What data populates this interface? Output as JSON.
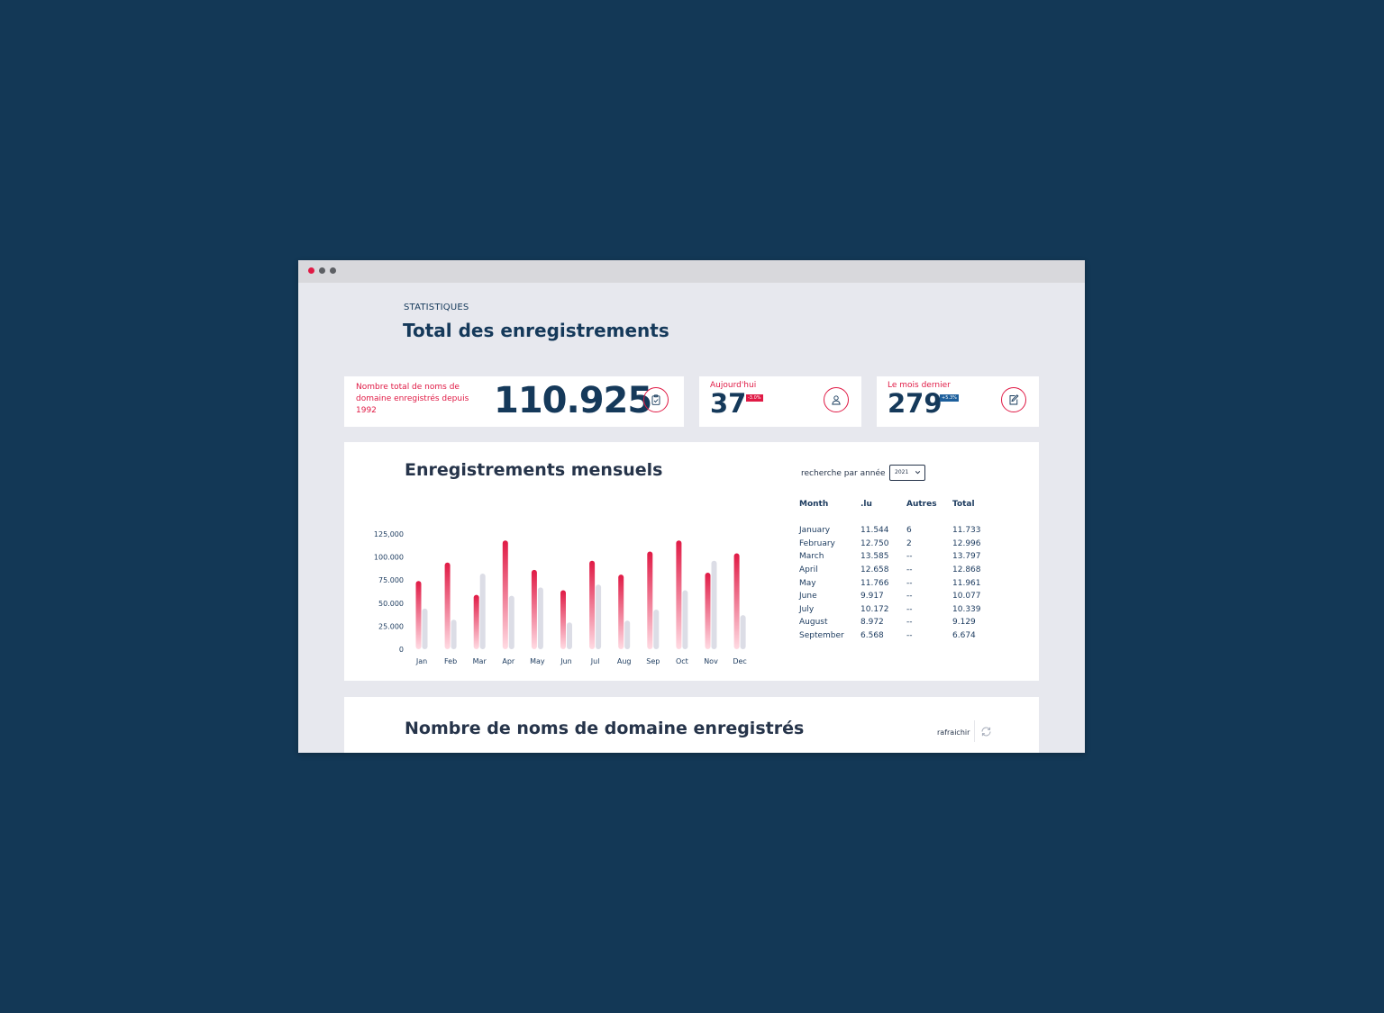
{
  "window": {
    "dots": [
      "red",
      "gray",
      "gray"
    ]
  },
  "header": {
    "eyebrow": "STATISTIQUES",
    "title": "Total des enregistrements"
  },
  "kpis": [
    {
      "label": "Nombre total de noms de domaine enregistrés depuis 1992",
      "value": "110.925",
      "icon": "clipboard-check-icon"
    },
    {
      "label": "Aujourd'hui",
      "value": "37",
      "badge": "-3.0%",
      "icon": "user-icon"
    },
    {
      "label": "Le mois dernier",
      "value": "279",
      "badge": "+5.3%",
      "icon": "note-edit-icon"
    }
  ],
  "monthly": {
    "title": "Enregistrements mensuels",
    "year_label": "recherche par année",
    "year_value": "2021",
    "table": {
      "headers": [
        "Month",
        ".lu",
        "Autres",
        "Total"
      ],
      "rows": [
        [
          "January",
          "11.544",
          "6",
          "11.733"
        ],
        [
          "February",
          "12.750",
          "2",
          "12.996"
        ],
        [
          "March",
          "13.585",
          "--",
          "13.797"
        ],
        [
          "April",
          "12.658",
          "--",
          "12.868"
        ],
        [
          "May",
          "11.766",
          "--",
          "11.961"
        ],
        [
          "June",
          "9.917",
          "--",
          "10.077"
        ],
        [
          "July",
          "10.172",
          "--",
          "10.339"
        ],
        [
          "August",
          "8.972",
          "--",
          "9.129"
        ],
        [
          "September",
          "6.568",
          "--",
          "6.674"
        ]
      ]
    }
  },
  "chart_data": {
    "type": "bar",
    "categories": [
      "Jan",
      "Feb",
      "Mar",
      "Apr",
      "May",
      "Jun",
      "Jul",
      "Aug",
      "Sep",
      "Oct",
      "Nov",
      "Dec"
    ],
    "series": [
      {
        "values": [
          74000,
          94000,
          59000,
          118000,
          86000,
          64000,
          96000,
          81000,
          106000,
          118000,
          83000,
          104000
        ],
        "color": "#e01a45"
      },
      {
        "values": [
          44000,
          32000,
          82000,
          58000,
          67000,
          29000,
          70000,
          31000,
          43000,
          64000,
          96000,
          37000
        ],
        "color": "#dcdde6"
      }
    ],
    "yticks": [
      "0",
      "25.000",
      "50.000",
      "75.000",
      "100.000",
      "125,000"
    ],
    "ylim": [
      0,
      125000
    ],
    "grid": false
  },
  "domains": {
    "title": "Nombre de noms de domaine enregistrés",
    "refresh_label": "rafraichir"
  }
}
